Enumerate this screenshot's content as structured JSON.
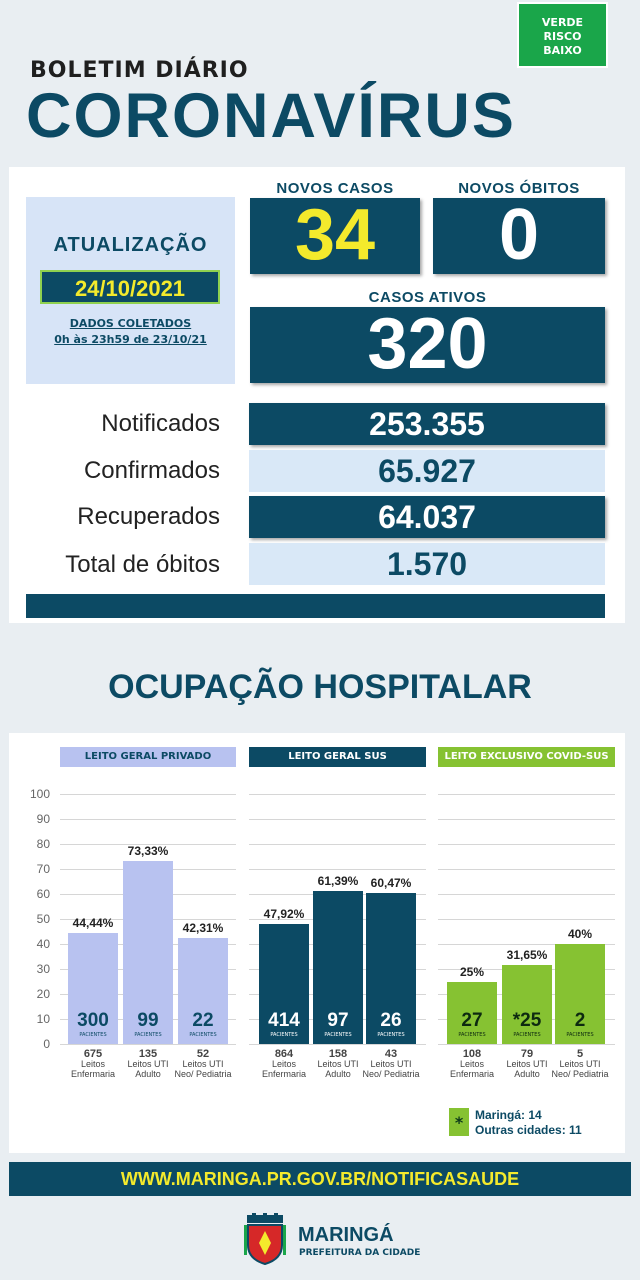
{
  "risk": {
    "line1": "VERDE",
    "line2": "RISCO",
    "line3": "BAIXO",
    "color": "#1aa64a"
  },
  "header": {
    "kicker": "BOLETIM DIÁRIO",
    "title": "CORONAVÍRUS"
  },
  "update": {
    "label": "ATUALIZAÇÃO",
    "date": "24/10/2021",
    "collected_label": "DADOS COLETADOS",
    "collected_range": "0h às 23h59 de 23/10/21"
  },
  "kpis": {
    "new_cases_label": "NOVOS CASOS",
    "new_cases": "34",
    "new_deaths_label": "NOVOS ÓBITOS",
    "new_deaths": "0",
    "active_label": "CASOS ATIVOS",
    "active": "320"
  },
  "totals": [
    {
      "label": "Notificados",
      "value": "253.355"
    },
    {
      "label": "Confirmados",
      "value": "65.927"
    },
    {
      "label": "Recuperados",
      "value": "64.037"
    },
    {
      "label": "Total de óbitos",
      "value": "1.570"
    }
  ],
  "hospital_title": "OCUPAÇÃO HOSPITALAR",
  "colors": {
    "dark": "#0c4a64",
    "private": "#b8c2f0",
    "sus": "#0c4a64",
    "covid": "#86c232",
    "yellow": "#f4ea2c"
  },
  "chart_data": {
    "type": "bar",
    "ylim": [
      0,
      100
    ],
    "yticks": [
      0,
      10,
      20,
      30,
      40,
      50,
      60,
      70,
      80,
      90,
      100
    ],
    "groups": [
      {
        "name": "LEITO GERAL PRIVADO",
        "bars": [
          {
            "pct": 44.44,
            "pct_label": "44,44%",
            "patients": "300",
            "beds": "675",
            "bed_type": "Leitos Enfermaria"
          },
          {
            "pct": 73.33,
            "pct_label": "73,33%",
            "patients": "99",
            "beds": "135",
            "bed_type": "Leitos UTI Adulto"
          },
          {
            "pct": 42.31,
            "pct_label": "42,31%",
            "patients": "22",
            "beds": "52",
            "bed_type": "Leitos UTI Neo/ Pediatria"
          }
        ]
      },
      {
        "name": "LEITO GERAL SUS",
        "bars": [
          {
            "pct": 47.92,
            "pct_label": "47,92%",
            "patients": "414",
            "beds": "864",
            "bed_type": "Leitos Enfermaria"
          },
          {
            "pct": 61.39,
            "pct_label": "61,39%",
            "patients": "97",
            "beds": "158",
            "bed_type": "Leitos UTI Adulto"
          },
          {
            "pct": 60.47,
            "pct_label": "60,47%",
            "patients": "26",
            "beds": "43",
            "bed_type": "Leitos UTI Neo/ Pediatria"
          }
        ]
      },
      {
        "name": "LEITO EXCLUSIVO COVID-SUS",
        "bars": [
          {
            "pct": 25,
            "pct_label": "25%",
            "patients": "27",
            "beds": "108",
            "bed_type": "Leitos Enfermaria"
          },
          {
            "pct": 31.65,
            "pct_label": "31,65%",
            "patients": "*25",
            "beds": "79",
            "bed_type": "Leitos UTI Adulto"
          },
          {
            "pct": 40,
            "pct_label": "40%",
            "patients": "2",
            "beds": "5",
            "bed_type": "Leitos UTI Neo/ Pediatria"
          }
        ]
      }
    ],
    "patients_unit": "PACIENTES"
  },
  "legend": {
    "symbol": "*",
    "line1": "Maringá: 14",
    "line2": "Outras cidades: 11"
  },
  "footer": {
    "url": "WWW.MARINGA.PR.GOV.BR/NOTIFICASAUDE",
    "city": "MARINGÁ",
    "subtitle": "PREFEITURA DA CIDADE"
  }
}
